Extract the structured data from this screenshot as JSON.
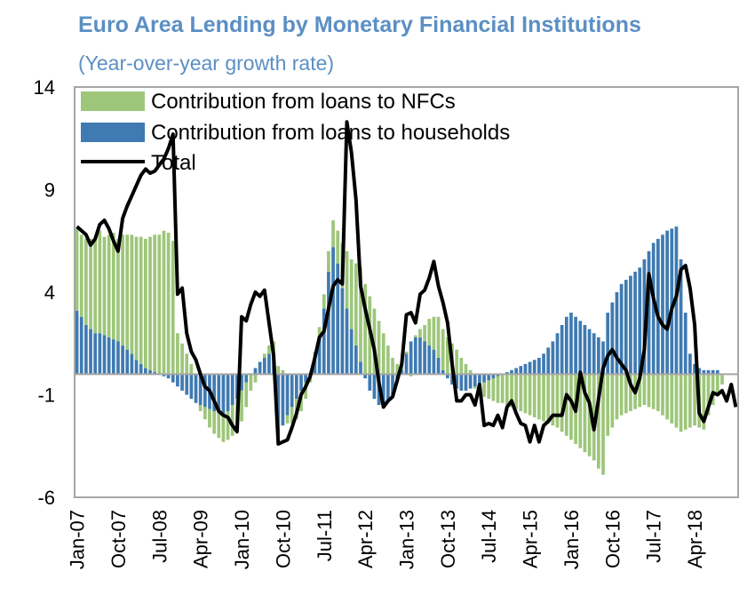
{
  "chart_data": {
    "type": "bar",
    "title": "Euro Area Lending by Monetary Financial Institutions",
    "subtitle": "(Year-over-year growth rate)",
    "ylim": [
      -6,
      14
    ],
    "yticks": [
      14,
      9,
      4,
      -1,
      -6
    ],
    "xlabels": [
      "Jan-07",
      "Oct-07",
      "Jul-08",
      "Apr-09",
      "Jan-10",
      "Oct-10",
      "Jul-11",
      "Apr-12",
      "Jan-13",
      "Oct-13",
      "Jul-14",
      "Apr-15",
      "Jan-16",
      "Oct-16",
      "Jul-17",
      "Apr-18"
    ],
    "legend_position": "top-left",
    "grid": false,
    "colors": {
      "nfc": "#9dc67a",
      "households": "#3f7ab2",
      "total": "#000000",
      "axis": "#a6a6a6",
      "title": "#5b8fc4"
    },
    "series": [
      {
        "name": "Contribution from loans to NFCs",
        "kind": "bar",
        "values": [
          4.0,
          4.0,
          4.2,
          4.4,
          4.6,
          5.0,
          4.8,
          5.0,
          5.2,
          5.0,
          5.4,
          5.6,
          5.8,
          6.0,
          6.2,
          6.3,
          6.5,
          6.7,
          6.8,
          7.0,
          6.9,
          6.5,
          2.0,
          1.5,
          1.0,
          0.5,
          0.0,
          -0.3,
          -0.6,
          -0.9,
          -1.1,
          -1.2,
          -1.3,
          -1.4,
          -1.5,
          -1.5,
          -1.5,
          -1.2,
          -0.8,
          -0.4,
          0.0,
          0.2,
          0.4,
          0.6,
          0.4,
          0.2,
          -0.4,
          -0.8,
          -1.0,
          -1.0,
          -0.8,
          -0.4,
          0.3,
          0.5,
          0.7,
          1.0,
          1.3,
          1.6,
          2.2,
          2.8,
          3.4,
          4.0,
          4.6,
          4.4,
          3.8,
          3.2,
          2.6,
          2.0,
          1.4,
          0.8,
          0.5,
          0.3,
          0.1,
          -0.1,
          0.1,
          0.4,
          0.8,
          1.3,
          1.6,
          2.0,
          2.0,
          1.8,
          1.5,
          1.2,
          0.8,
          0.5,
          0.2,
          -0.1,
          -0.4,
          -0.7,
          -0.9,
          -1.1,
          -1.3,
          -1.4,
          -1.5,
          -1.6,
          -1.7,
          -1.8,
          -1.9,
          -2.0,
          -2.1,
          -2.2,
          -2.3,
          -2.4,
          -2.5,
          -2.6,
          -2.8,
          -3.0,
          -3.2,
          -3.4,
          -3.6,
          -3.8,
          -4.0,
          -4.2,
          -4.6,
          -4.9,
          -3.0,
          -2.6,
          -2.2,
          -2.0,
          -1.9,
          -1.8,
          -1.7,
          -1.6,
          -1.5,
          -1.6,
          -1.7,
          -1.8,
          -2.0,
          -2.2,
          -2.4,
          -2.6,
          -2.8,
          -2.7,
          -2.6,
          -2.5,
          -2.6,
          -2.7,
          -2.0,
          -1.5,
          -1.0,
          -0.5
        ]
      },
      {
        "name": "Contribution from loans to households",
        "kind": "bar",
        "values": [
          3.1,
          2.8,
          2.4,
          2.2,
          2.0,
          2.0,
          1.9,
          1.8,
          1.7,
          1.6,
          1.4,
          1.2,
          1.0,
          0.7,
          0.5,
          0.3,
          0.2,
          0.1,
          0.0,
          -0.1,
          -0.2,
          -0.4,
          -0.6,
          -0.8,
          -1.0,
          -1.2,
          -1.4,
          -1.5,
          -1.6,
          -1.7,
          -1.8,
          -1.9,
          -2.0,
          -1.8,
          -1.5,
          -1.2,
          -0.8,
          -0.4,
          0.0,
          0.3,
          0.6,
          0.8,
          1.0,
          1.0,
          -3.0,
          -2.5,
          -2.0,
          -1.6,
          -1.2,
          -0.8,
          -0.4,
          0.0,
          0.8,
          1.8,
          3.2,
          5.0,
          6.2,
          5.4,
          4.2,
          3.2,
          2.2,
          1.4,
          0.6,
          -0.2,
          -0.8,
          -1.2,
          -1.5,
          -1.6,
          -1.3,
          -1.0,
          -0.4,
          0.2,
          1.0,
          1.6,
          1.8,
          1.8,
          1.6,
          1.4,
          1.2,
          0.8,
          0.2,
          -0.2,
          -0.5,
          -0.7,
          -0.8,
          -0.8,
          -0.7,
          -0.6,
          -0.5,
          -0.4,
          -0.3,
          -0.2,
          -0.1,
          0.0,
          0.1,
          0.2,
          0.3,
          0.4,
          0.5,
          0.6,
          0.7,
          0.8,
          1.0,
          1.3,
          1.6,
          2.0,
          2.4,
          2.8,
          3.0,
          2.8,
          2.6,
          2.4,
          2.2,
          2.0,
          1.8,
          1.6,
          3.0,
          3.5,
          4.0,
          4.4,
          4.6,
          4.8,
          5.0,
          5.2,
          5.6,
          6.0,
          6.4,
          6.6,
          6.8,
          7.0,
          7.1,
          7.2,
          5.6,
          3.0,
          1.0,
          0.5,
          0.3,
          0.2,
          0.2,
          0.2,
          0.2
        ]
      },
      {
        "name": "Total",
        "kind": "line",
        "values": [
          7.2,
          7.0,
          6.8,
          6.3,
          6.6,
          7.3,
          7.5,
          7.1,
          6.5,
          6.0,
          7.6,
          8.2,
          8.7,
          9.2,
          9.7,
          10.0,
          9.8,
          9.9,
          10.2,
          10.5,
          11.0,
          11.7,
          3.9,
          4.2,
          2.0,
          1.1,
          0.7,
          0.0,
          -0.6,
          -0.8,
          -1.3,
          -1.8,
          -2.0,
          -2.1,
          -2.5,
          -2.8,
          2.8,
          2.6,
          3.4,
          4.0,
          3.8,
          4.1,
          2.5,
          0.9,
          -3.4,
          -3.3,
          -3.2,
          -2.6,
          -1.9,
          -1.0,
          -0.6,
          -0.1,
          0.8,
          1.8,
          2.1,
          3.2,
          4.3,
          4.6,
          4.4,
          12.3,
          10.8,
          8.5,
          4.3,
          3.2,
          2.2,
          1.2,
          -0.4,
          -1.6,
          -1.3,
          -1.1,
          -0.3,
          0.5,
          2.9,
          3.0,
          2.5,
          3.9,
          4.1,
          4.7,
          5.5,
          4.3,
          3.5,
          2.5,
          0.5,
          -1.3,
          -1.3,
          -1.0,
          -1.0,
          -1.5,
          -0.5,
          -2.5,
          -2.4,
          -2.5,
          -2.0,
          -2.6,
          -1.6,
          -1.3,
          -1.9,
          -2.4,
          -2.5,
          -3.3,
          -2.5,
          -3.3,
          -2.5,
          -2.3,
          -2.0,
          -2.0,
          -2.0,
          -1.0,
          -1.3,
          -1.8,
          0.1,
          -0.9,
          -1.4,
          -2.7,
          -1.2,
          0.3,
          0.9,
          1.2,
          0.8,
          0.5,
          0.2,
          -0.5,
          -0.9,
          -0.2,
          1.2,
          4.9,
          3.7,
          2.8,
          2.4,
          2.2,
          3.2,
          3.8,
          5.1,
          5.3,
          4.2,
          2.4,
          -1.9,
          -2.3,
          -1.6,
          -0.9,
          -1.0,
          -0.8,
          -1.3,
          -0.5,
          -1.6
        ]
      }
    ]
  }
}
